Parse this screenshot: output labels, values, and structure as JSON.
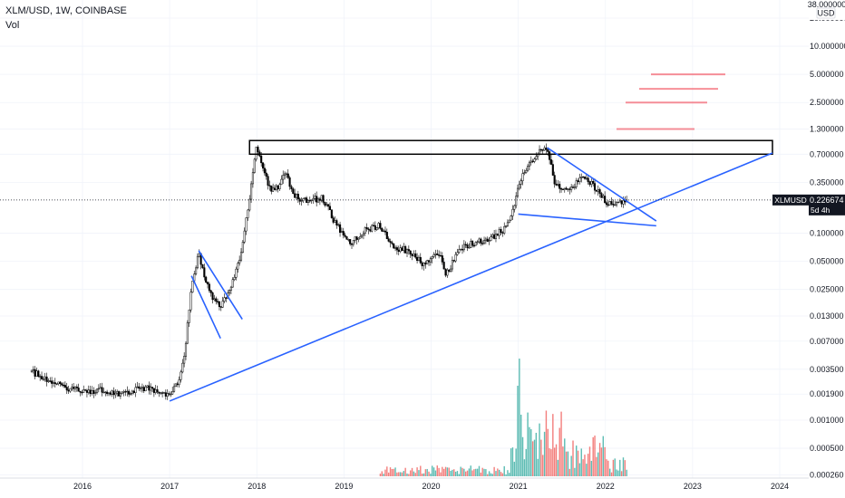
{
  "header": {
    "title": "XLM/USD, 1W, COINBASE",
    "volume_label": "Vol"
  },
  "price_axis": {
    "currency": "USD",
    "top_label": "38.000000",
    "ticks": [
      "20.000000",
      "10.000000",
      "5.000000",
      "2.500000",
      "1.300000",
      "0.700000",
      "0.350000",
      "0.100000",
      "0.050000",
      "0.025000",
      "0.013000",
      "0.007000",
      "0.003500",
      "0.001900",
      "0.001000",
      "0.000500",
      "0.000260"
    ]
  },
  "last_price": {
    "symbol": "XLMUSD",
    "value": "0.226674",
    "countdown": "5d 4h"
  },
  "time_axis": [
    "2016",
    "2017",
    "2018",
    "2019",
    "2020",
    "2021",
    "2022",
    "2023",
    "2024"
  ],
  "colors": {
    "up": "#26a69a",
    "down": "#ef5350",
    "candle": "#000000",
    "trendline": "#2962ff",
    "zone_box": "#000000",
    "targets": "#f23645",
    "last_price_bg": "#131722"
  },
  "chart_data": {
    "type": "candlestick",
    "symbol": "XLM/USD",
    "interval": "1W",
    "exchange": "COINBASE",
    "y_scale": "log",
    "ylim": [
      0.00026,
      38
    ],
    "x_range": [
      "2015-06",
      "2024-03"
    ],
    "price_path": [
      [
        "2015-06",
        0.0033
      ],
      [
        "2015-08",
        0.0028
      ],
      [
        "2015-10",
        0.0023
      ],
      [
        "2015-12",
        0.0021
      ],
      [
        "2016-02",
        0.002
      ],
      [
        "2016-04",
        0.0021
      ],
      [
        "2016-06",
        0.0019
      ],
      [
        "2016-08",
        0.0021
      ],
      [
        "2016-10",
        0.0022
      ],
      [
        "2016-12",
        0.002
      ],
      [
        "2017-01",
        0.0018
      ],
      [
        "2017-02",
        0.0024
      ],
      [
        "2017-03",
        0.0045
      ],
      [
        "2017-04",
        0.028
      ],
      [
        "2017-05",
        0.06
      ],
      [
        "2017-06",
        0.03
      ],
      [
        "2017-07",
        0.02
      ],
      [
        "2017-08",
        0.016
      ],
      [
        "2017-09",
        0.022
      ],
      [
        "2017-10",
        0.035
      ],
      [
        "2017-11",
        0.07
      ],
      [
        "2017-12",
        0.25
      ],
      [
        "2018-01",
        0.85
      ],
      [
        "2018-02",
        0.45
      ],
      [
        "2018-03",
        0.28
      ],
      [
        "2018-04",
        0.32
      ],
      [
        "2018-05",
        0.48
      ],
      [
        "2018-06",
        0.25
      ],
      [
        "2018-08",
        0.22
      ],
      [
        "2018-10",
        0.24
      ],
      [
        "2018-12",
        0.12
      ],
      [
        "2019-02",
        0.08
      ],
      [
        "2019-04",
        0.11
      ],
      [
        "2019-06",
        0.12
      ],
      [
        "2019-08",
        0.07
      ],
      [
        "2019-10",
        0.065
      ],
      [
        "2019-12",
        0.046
      ],
      [
        "2020-02",
        0.065
      ],
      [
        "2020-03",
        0.035
      ],
      [
        "2020-05",
        0.07
      ],
      [
        "2020-07",
        0.08
      ],
      [
        "2020-09",
        0.085
      ],
      [
        "2020-11",
        0.11
      ],
      [
        "2020-12",
        0.15
      ],
      [
        "2021-01",
        0.3
      ],
      [
        "2021-02",
        0.5
      ],
      [
        "2021-04",
        0.75
      ],
      [
        "2021-05",
        0.85
      ],
      [
        "2021-06",
        0.35
      ],
      [
        "2021-08",
        0.28
      ],
      [
        "2021-09",
        0.35
      ],
      [
        "2021-10",
        0.4
      ],
      [
        "2021-11",
        0.35
      ],
      [
        "2021-12",
        0.28
      ],
      [
        "2022-01",
        0.22
      ],
      [
        "2022-02",
        0.2
      ],
      [
        "2022-03",
        0.21
      ],
      [
        "2022-04",
        0.227
      ]
    ],
    "volume": {
      "peak": "2021-01",
      "range": [
        "2019-06",
        "2022-04"
      ]
    },
    "drawings": {
      "resistance_box": {
        "from": "2017-12",
        "to": "2023-12",
        "low": 0.7,
        "high": 0.98
      },
      "targets": [
        1.3,
        2.5,
        3.5,
        5.0
      ],
      "lines": [
        {
          "name": "long-term-support",
          "from": [
            "2017-01",
            0.0016
          ],
          "to": [
            "2023-12",
            0.72
          ]
        },
        {
          "name": "flag-2017-upper",
          "from": [
            "2017-05",
            0.065
          ],
          "to": [
            "2017-11",
            0.012
          ]
        },
        {
          "name": "flag-2017-lower",
          "from": [
            "2017-04",
            0.035
          ],
          "to": [
            "2017-08",
            0.0075
          ]
        },
        {
          "name": "wedge-upper",
          "from": [
            "2021-05",
            0.82
          ],
          "to": [
            "2022-08",
            0.135
          ]
        },
        {
          "name": "wedge-lower",
          "from": [
            "2021-01",
            0.16
          ],
          "to": [
            "2022-08",
            0.12
          ]
        }
      ]
    }
  }
}
